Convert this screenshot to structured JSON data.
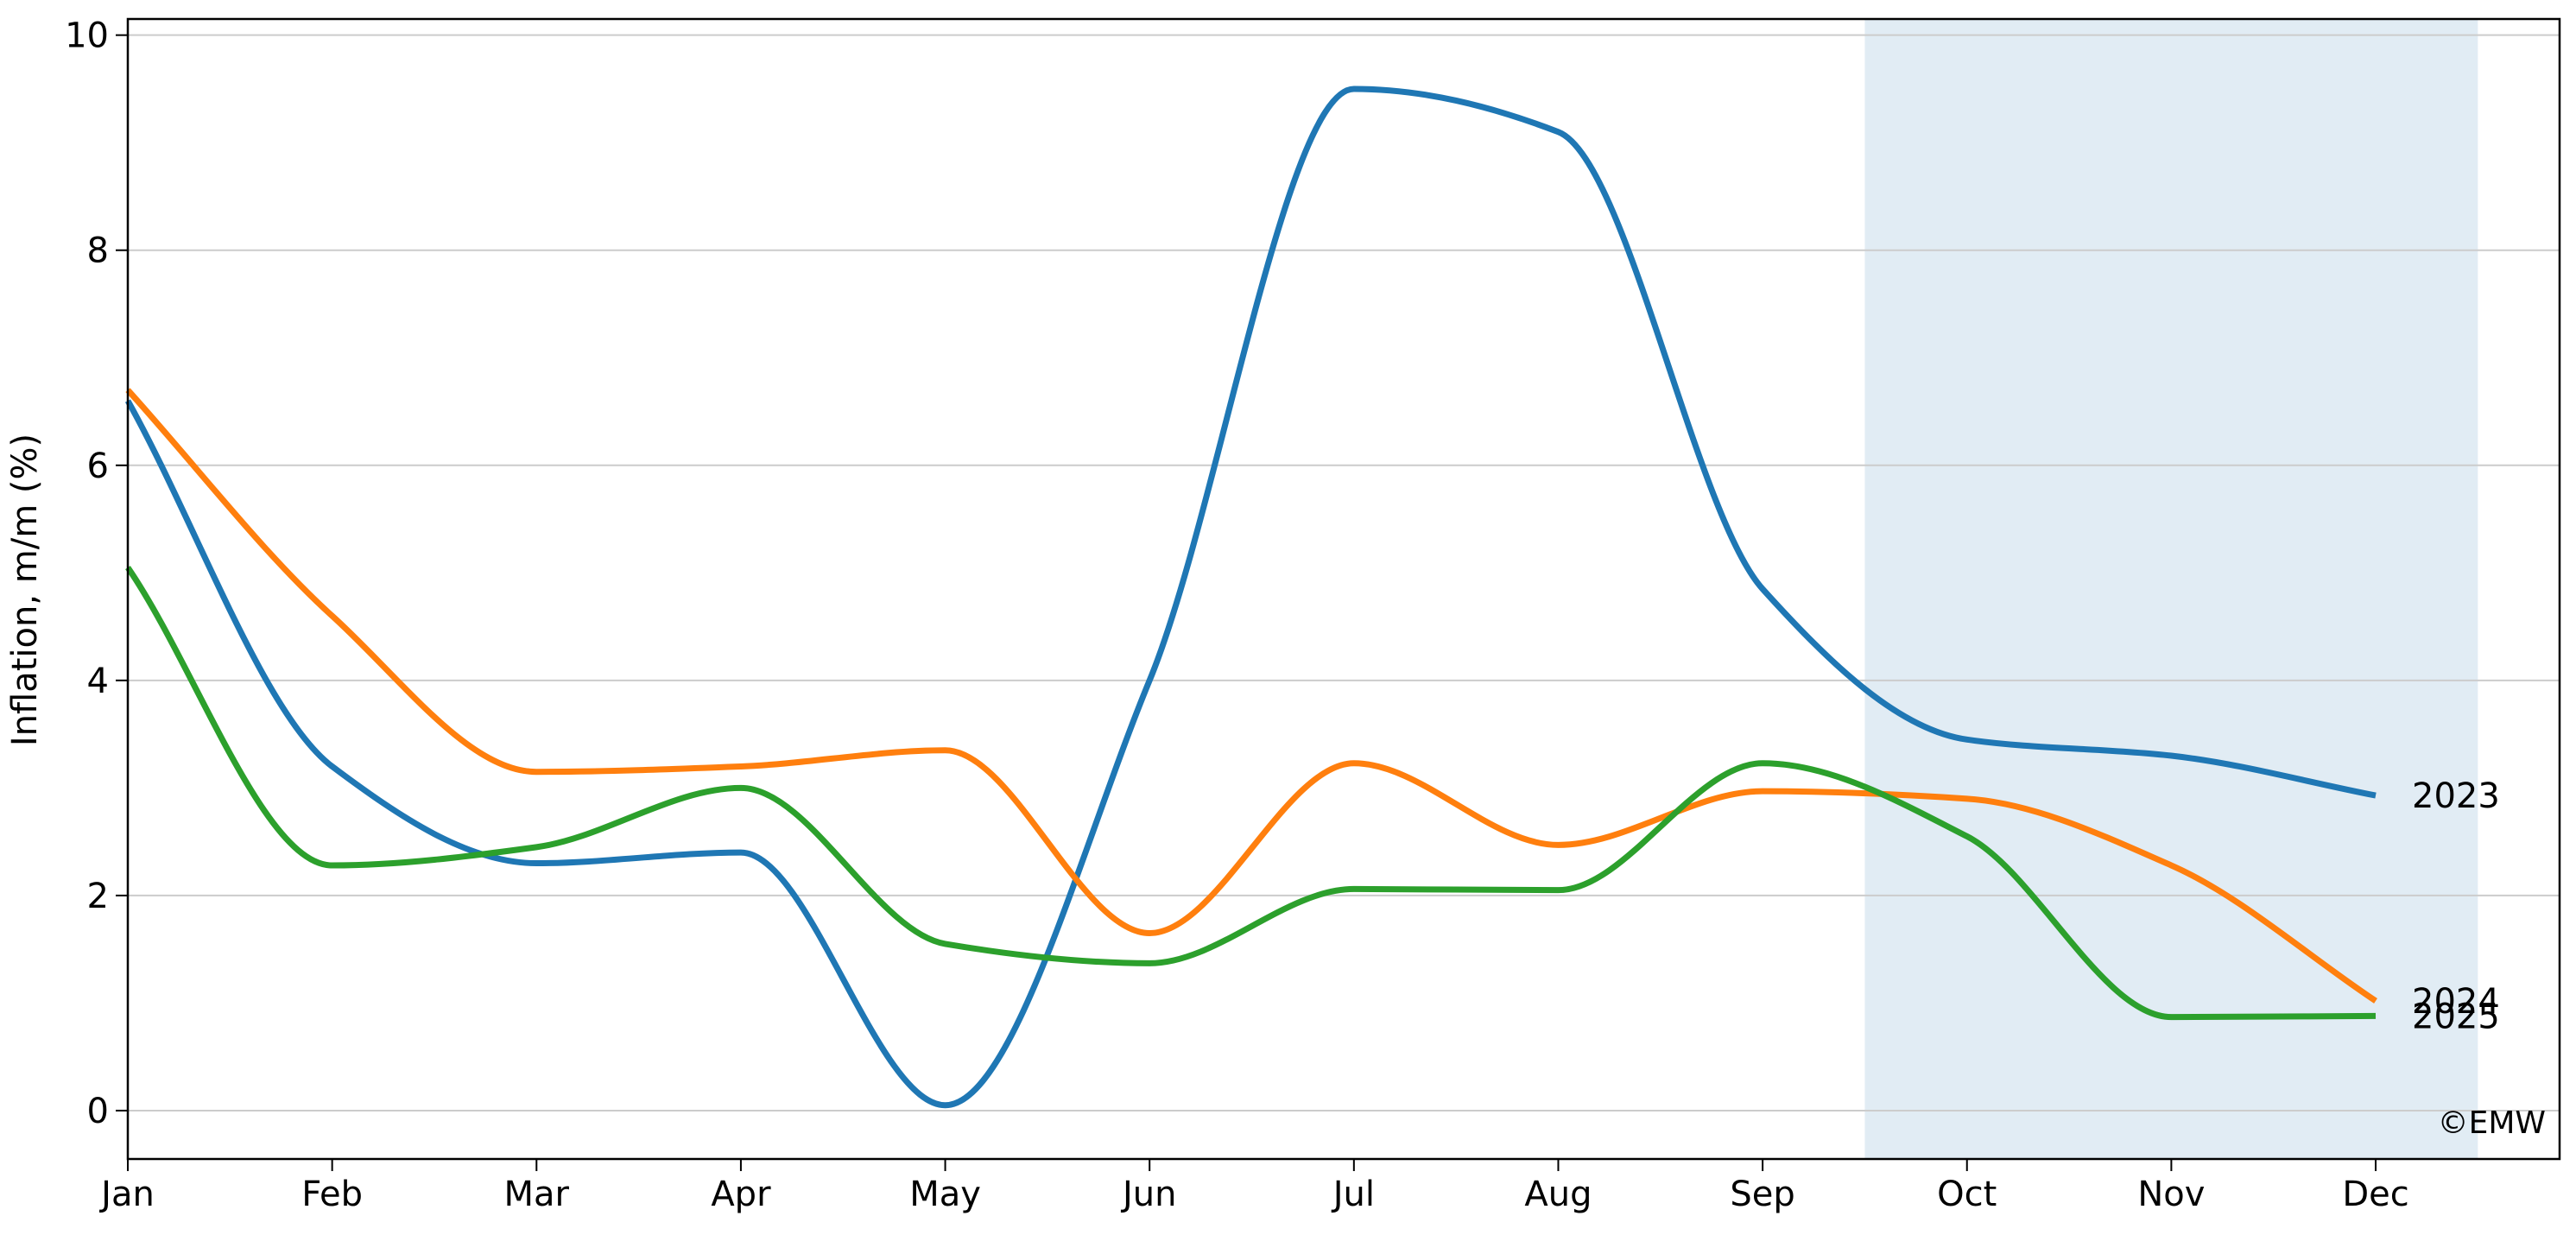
{
  "chart_data": {
    "type": "line",
    "title": "",
    "xlabel": "",
    "ylabel": "Inflation, m/m (%)",
    "categories": [
      "Jan",
      "Feb",
      "Mar",
      "Apr",
      "May",
      "Jun",
      "Jul",
      "Aug",
      "Sep",
      "Oct",
      "Nov",
      "Dec"
    ],
    "yticks": [
      "0",
      "2",
      "4",
      "6",
      "8",
      "10"
    ],
    "ylim": [
      -0.45,
      10.15
    ],
    "xlim": [
      0,
      11.9
    ],
    "grid": "horizontal",
    "highlight_region": {
      "x_start": 8.5,
      "x_end": 11.5,
      "color": "#e1ecf4"
    },
    "series": [
      {
        "name": "2023",
        "color": "#1f77b4",
        "values": [
          6.6,
          3.2,
          2.3,
          2.4,
          0.05,
          4.0,
          9.5,
          9.1,
          4.85,
          3.45,
          3.3,
          2.93
        ]
      },
      {
        "name": "2024",
        "color": "#ff7f0e",
        "values": [
          6.7,
          4.6,
          3.15,
          3.2,
          3.35,
          1.65,
          3.23,
          2.47,
          2.97,
          2.9,
          2.28,
          1.02
        ]
      },
      {
        "name": "2025",
        "color": "#2ca02c",
        "values": [
          5.05,
          2.28,
          2.45,
          3.0,
          1.55,
          1.37,
          2.06,
          2.05,
          3.23,
          2.55,
          0.87,
          0.88
        ]
      }
    ],
    "watermark": "©EMW"
  }
}
